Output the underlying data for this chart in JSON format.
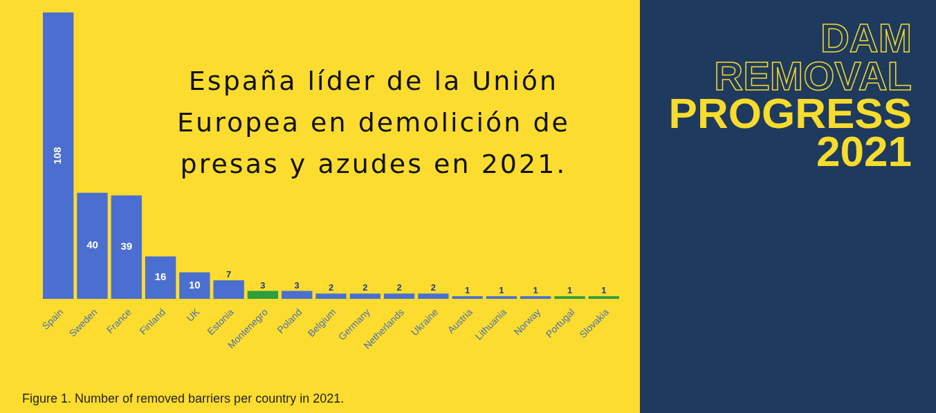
{
  "chart_data": {
    "type": "bar",
    "title": "España líder de la Unión Europea en demolición de presas y azudes en 2021.",
    "categories": [
      "Spain",
      "Sweden",
      "France",
      "Finland",
      "UK",
      "Estonia",
      "Montenegro",
      "Poland",
      "Belgium",
      "Germany",
      "Netherlands",
      "Ukraine",
      "Austria",
      "Lithuania",
      "Norway",
      "Portugal",
      "Slovakia"
    ],
    "values": [
      108,
      40,
      39,
      16,
      10,
      7,
      3,
      3,
      2,
      2,
      2,
      2,
      1,
      1,
      1,
      1,
      1
    ],
    "colors": [
      "#4a6fd0",
      "#4a6fd0",
      "#4a6fd0",
      "#4a6fd0",
      "#4a6fd0",
      "#4a6fd0",
      "#2e9e3e",
      "#4a6fd0",
      "#4a6fd0",
      "#4a6fd0",
      "#4a6fd0",
      "#4a6fd0",
      "#4a6fd0",
      "#4a6fd0",
      "#4a6fd0",
      "#2e9e3e",
      "#2e9e3e"
    ],
    "data_labels": true,
    "annotations": [
      "Figure 1. Number of removed barriers per country in 2021.",
      "DAM REMOVAL PROGRESS 2021"
    ]
  }
}
